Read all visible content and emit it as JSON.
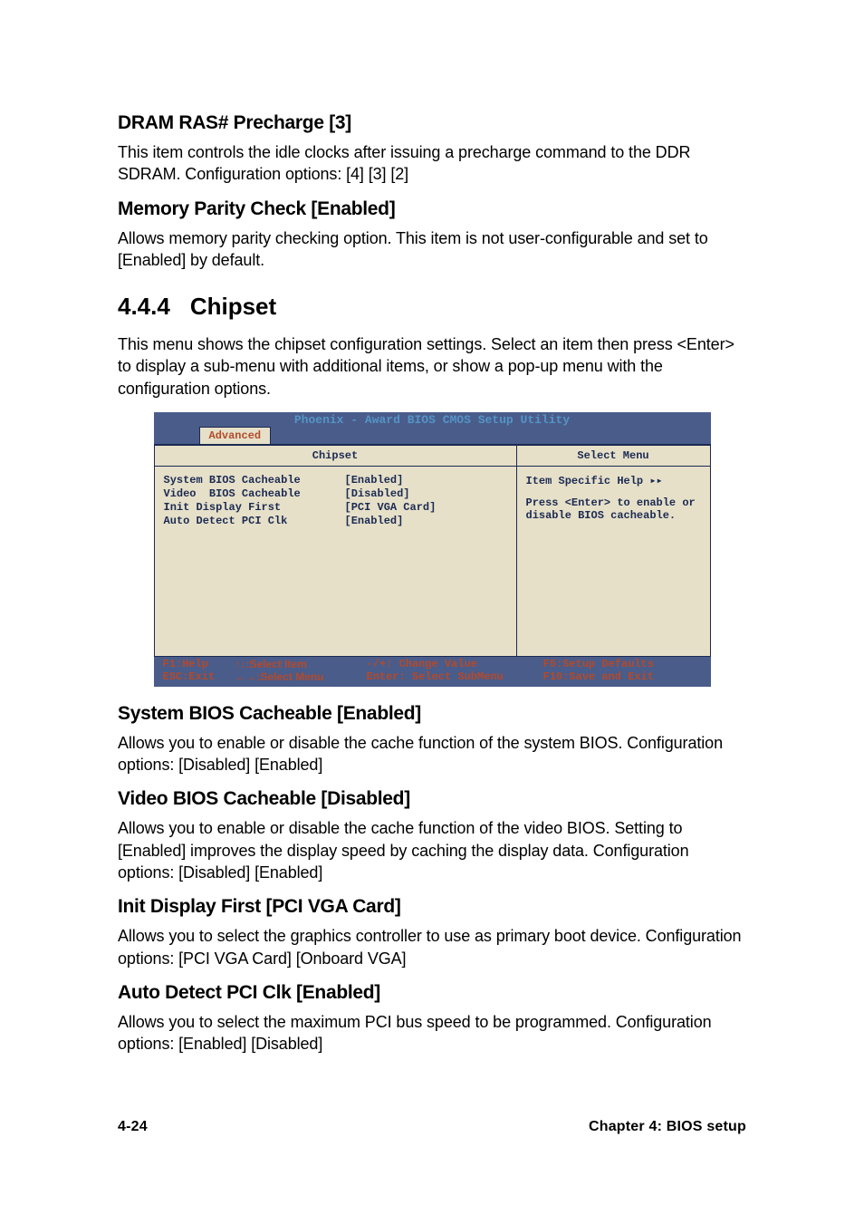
{
  "sections": {
    "dram": {
      "heading": "DRAM RAS# Precharge [3]",
      "text": "This item controls the idle clocks after issuing a precharge command to the DDR SDRAM. Configuration options: [4] [3] [2]"
    },
    "parity": {
      "heading": "Memory Parity Check [Enabled]",
      "text": "Allows memory parity checking option. This item is not user-configurable and set to [Enabled] by default."
    },
    "chipset_h": {
      "num": "4.4.4",
      "title": "Chipset",
      "text": "This menu shows the chipset configuration settings. Select an item then press <Enter> to display a sub-menu with additional items, or show a pop-up menu with the configuration options."
    },
    "sysbios": {
      "heading": "System BIOS Cacheable [Enabled]",
      "text": "Allows you to enable or disable the cache function of the system BIOS. Configuration options: [Disabled] [Enabled]"
    },
    "vidbios": {
      "heading": "Video BIOS Cacheable [Disabled]",
      "text": "Allows you to enable or disable the cache function of the video BIOS. Setting to [Enabled] improves the display speed by caching the display data. Configuration options: [Disabled] [Enabled]"
    },
    "initdisp": {
      "heading": "Init Display First [PCI VGA Card]",
      "text": "Allows you to select the graphics controller to use as primary boot device. Configuration options: [PCI VGA Card] [Onboard VGA]"
    },
    "autopci": {
      "heading": "Auto Detect PCI Clk [Enabled]",
      "text": "Allows you to select the maximum PCI bus speed to be programmed. Configuration options: [Enabled] [Disabled]"
    }
  },
  "bios": {
    "title": "Phoenix - Award BIOS CMOS Setup Utility",
    "tab": "Advanced",
    "left_header": "Chipset",
    "right_header": "Select Menu",
    "items": [
      {
        "label": "System BIOS Cacheable",
        "value": "[Enabled]"
      },
      {
        "label": "Video  BIOS Cacheable",
        "value": "[Disabled]"
      },
      {
        "label": "Init Display First",
        "value": "[PCI VGA Card]"
      },
      {
        "label": "Auto Detect PCI Clk",
        "value": "[Enabled]"
      }
    ],
    "help_title": "Item Specific Help ▸▸",
    "help_text": "Press <Enter> to enable or disable BIOS cacheable.",
    "footer": {
      "r1c1": "F1:Help",
      "r1c2": "↑↓:Select Item",
      "r1c3": "-/+: Change Value",
      "r1c4": "F5:Setup Defaults",
      "r2c1": "ESC:Exit",
      "r2c2": "←→:Select Menu",
      "r2c3": "Enter: Select SubMenu",
      "r2c4": "F10:Save and Exit"
    },
    "colors": {
      "bar_bg": "#4a5c8a",
      "panel_bg": "#e6e0c9",
      "text_dark": "#1b2a52",
      "accent": "#b34a2a",
      "title_fg": "#5494c6"
    }
  },
  "footer": {
    "left": "4-24",
    "right": "Chapter 4: BIOS setup"
  }
}
